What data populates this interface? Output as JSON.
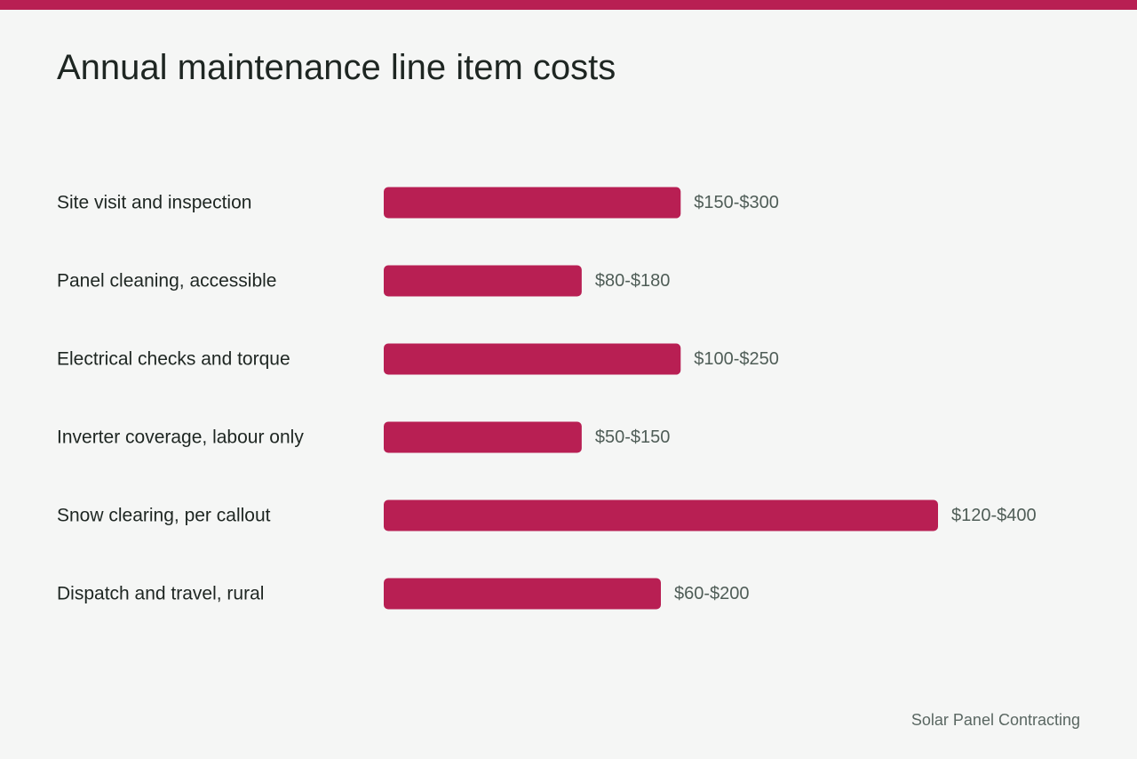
{
  "title": "Annual maintenance line item costs",
  "source": "Solar Panel Contracting",
  "colors": {
    "accent": "#b81f53",
    "background": "#f5f6f5",
    "text": "#1e2622",
    "muted_text": "#4f5d57"
  },
  "chart_data": {
    "type": "bar",
    "orientation": "horizontal",
    "title": "Annual maintenance line item costs",
    "xlabel": "",
    "ylabel": "",
    "grid": false,
    "legend": "none",
    "categories": [
      "Site visit and inspection",
      "Panel cleaning, accessible",
      "Electrical checks and torque",
      "Inverter coverage, labour only",
      "Snow clearing, per callout",
      "Dispatch and travel, rural"
    ],
    "series": [
      {
        "low": [
          150,
          80,
          100,
          50,
          120,
          60
        ],
        "high": [
          300,
          180,
          250,
          150,
          400,
          200
        ],
        "labels": [
          "$150-$300",
          "$80-$180",
          "$100-$250",
          "$50-$150",
          "$120-$400",
          "$60-$200"
        ]
      }
    ],
    "xlim": [
      0,
      400
    ]
  }
}
